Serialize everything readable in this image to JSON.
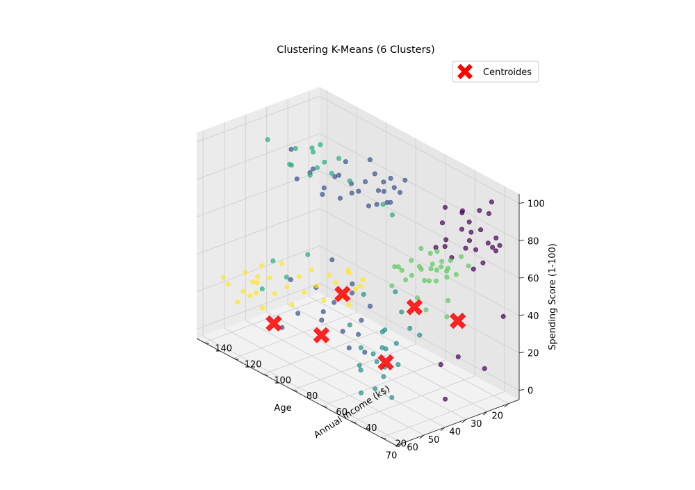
{
  "chart_data": {
    "type": "scatter",
    "projection": "3d",
    "title": "Clustering K-Means (6 Clusters)",
    "xlabel": "Age",
    "ylabel": "Annual Income (k$)",
    "zlabel": "Spending Score (1-100)",
    "xlim": [
      15,
      73
    ],
    "ylim": [
      10,
      145
    ],
    "zlim": [
      -5,
      105
    ],
    "xticks": [
      20,
      30,
      40,
      50,
      60,
      70
    ],
    "yticks": [
      20,
      40,
      60,
      80,
      100,
      120,
      140
    ],
    "zticks": [
      0,
      20,
      40,
      60,
      80,
      100
    ],
    "grid": true,
    "legend_position": "upper-right",
    "colormap": "viridis",
    "centroid_color": "#ff0000",
    "series": [
      {
        "cluster": 0,
        "color": "#440154",
        "points": [
          [
            19,
            15,
            39
          ],
          [
            20,
            16,
            77
          ],
          [
            21,
            17,
            81
          ],
          [
            22,
            18,
            76
          ],
          [
            23,
            19,
            94
          ],
          [
            19,
            20,
            72
          ],
          [
            21,
            20,
            99
          ],
          [
            22,
            21,
            77
          ],
          [
            23,
            23,
            66
          ],
          [
            24,
            24,
            94
          ],
          [
            25,
            25,
            73
          ],
          [
            22,
            26,
            82
          ],
          [
            24,
            28,
            61
          ],
          [
            26,
            28,
            87
          ],
          [
            27,
            29,
            73
          ],
          [
            28,
            30,
            92
          ],
          [
            23,
            31,
            79
          ],
          [
            26,
            33,
            81
          ],
          [
            25,
            34,
            90
          ],
          [
            21,
            35,
            72
          ],
          [
            28,
            37,
            65
          ],
          [
            30,
            38,
            75
          ],
          [
            31,
            39,
            84
          ],
          [
            29,
            40,
            91
          ],
          [
            32,
            42,
            70
          ],
          [
            27,
            43,
            68
          ],
          [
            25,
            19,
            12
          ],
          [
            34,
            24,
            20
          ],
          [
            38,
            30,
            15
          ],
          [
            45,
            17,
            5
          ]
        ]
      },
      {
        "cluster": 1,
        "color": "#3b528b",
        "points": [
          [
            27,
            70,
            92
          ],
          [
            28,
            72,
            85
          ],
          [
            30,
            73,
            88
          ],
          [
            31,
            74,
            93
          ],
          [
            32,
            75,
            80
          ],
          [
            33,
            76,
            91
          ],
          [
            29,
            77,
            78
          ],
          [
            34,
            78,
            86
          ],
          [
            35,
            79,
            95
          ],
          [
            30,
            80,
            83
          ],
          [
            32,
            82,
            76
          ],
          [
            36,
            84,
            89
          ],
          [
            33,
            86,
            74
          ],
          [
            31,
            88,
            97
          ],
          [
            35,
            90,
            81
          ],
          [
            37,
            92,
            85
          ],
          [
            34,
            96,
            77
          ],
          [
            38,
            99,
            87
          ],
          [
            36,
            101,
            73
          ],
          [
            32,
            103,
            90
          ],
          [
            35,
            106,
            82
          ],
          [
            38,
            109,
            76
          ],
          [
            36,
            113,
            70
          ],
          [
            39,
            115,
            84
          ],
          [
            37,
            120,
            79
          ],
          [
            39,
            126,
            74
          ],
          [
            34,
            137,
            83
          ],
          [
            40,
            75,
            28
          ],
          [
            42,
            78,
            20
          ],
          [
            45,
            80,
            35
          ],
          [
            48,
            82,
            15
          ],
          [
            47,
            77,
            42
          ],
          [
            50,
            85,
            30
          ],
          [
            53,
            88,
            25
          ],
          [
            55,
            90,
            38
          ],
          [
            51,
            92,
            18
          ],
          [
            44,
            95,
            46
          ],
          [
            58,
            98,
            22
          ],
          [
            60,
            100,
            40
          ],
          [
            62,
            103,
            14
          ],
          [
            46,
            70,
            8
          ],
          [
            52,
            72,
            12
          ],
          [
            56,
            60,
            26
          ]
        ]
      },
      {
        "cluster": 2,
        "color": "#21918c",
        "points": [
          [
            44,
            48,
            38
          ],
          [
            47,
            46,
            12
          ],
          [
            50,
            50,
            20
          ],
          [
            52,
            40,
            28
          ],
          [
            54,
            45,
            14
          ],
          [
            56,
            42,
            36
          ],
          [
            58,
            47,
            22
          ],
          [
            60,
            38,
            30
          ],
          [
            62,
            40,
            8
          ],
          [
            64,
            36,
            25
          ],
          [
            66,
            44,
            18
          ],
          [
            68,
            41,
            32
          ],
          [
            70,
            38,
            10
          ],
          [
            48,
            30,
            35
          ],
          [
            54,
            28,
            42
          ],
          [
            59,
            33,
            5
          ],
          [
            65,
            30,
            20
          ],
          [
            42,
            55,
            45
          ],
          [
            46,
            58,
            24
          ],
          [
            57,
            55,
            50
          ],
          [
            61,
            52,
            15
          ],
          [
            67,
            50,
            40
          ]
        ]
      },
      {
        "cluster": 3,
        "color": "#5ec962",
        "points": [
          [
            18,
            40,
            55
          ],
          [
            20,
            42,
            60
          ],
          [
            21,
            44,
            50
          ],
          [
            23,
            45,
            58
          ],
          [
            24,
            46,
            49
          ],
          [
            26,
            47,
            55
          ],
          [
            22,
            48,
            52
          ],
          [
            25,
            48,
            57
          ],
          [
            27,
            49,
            47
          ],
          [
            28,
            50,
            56
          ],
          [
            20,
            52,
            48
          ],
          [
            23,
            54,
            59
          ],
          [
            26,
            54,
            51
          ],
          [
            29,
            54,
            46
          ],
          [
            30,
            56,
            53
          ],
          [
            24,
            58,
            42
          ],
          [
            27,
            59,
            49
          ],
          [
            31,
            60,
            55
          ],
          [
            33,
            61,
            45
          ],
          [
            25,
            62,
            58
          ],
          [
            35,
            63,
            52
          ],
          [
            28,
            64,
            44
          ],
          [
            32,
            65,
            48
          ],
          [
            36,
            66,
            41
          ],
          [
            34,
            67,
            50
          ],
          [
            38,
            40,
            40
          ],
          [
            40,
            43,
            46
          ],
          [
            29,
            38,
            42
          ],
          [
            31,
            36,
            35
          ],
          [
            26,
            50,
            52
          ],
          [
            22,
            60,
            55
          ]
        ]
      },
      {
        "cluster": 4,
        "color": "#28ae80",
        "points": [
          [
            35,
            96,
            84
          ],
          [
            38,
            99,
            96
          ],
          [
            40,
            101,
            88
          ],
          [
            42,
            103,
            94
          ],
          [
            44,
            105,
            91
          ],
          [
            46,
            107,
            87
          ],
          [
            43,
            110,
            99
          ],
          [
            37,
            113,
            97
          ],
          [
            39,
            115,
            93
          ],
          [
            48,
            118,
            89
          ],
          [
            45,
            121,
            86
          ],
          [
            41,
            124,
            92
          ],
          [
            50,
            130,
            98
          ],
          [
            33,
            70,
            76
          ],
          [
            36,
            72,
            82
          ],
          [
            55,
            110,
            35
          ],
          [
            60,
            112,
            45
          ],
          [
            52,
            100,
            50
          ],
          [
            63,
            115,
            30
          ]
        ]
      },
      {
        "cluster": 5,
        "color": "#fde725",
        "points": [
          [
            40,
            80,
            40
          ],
          [
            42,
            82,
            35
          ],
          [
            44,
            84,
            45
          ],
          [
            45,
            86,
            30
          ],
          [
            47,
            88,
            38
          ],
          [
            49,
            90,
            42
          ],
          [
            50,
            92,
            28
          ],
          [
            52,
            94,
            36
          ],
          [
            53,
            96,
            44
          ],
          [
            55,
            98,
            32
          ],
          [
            56,
            100,
            40
          ],
          [
            58,
            102,
            25
          ],
          [
            59,
            104,
            34
          ],
          [
            60,
            106,
            46
          ],
          [
            62,
            108,
            30
          ],
          [
            63,
            110,
            38
          ],
          [
            65,
            112,
            22
          ],
          [
            66,
            114,
            35
          ],
          [
            68,
            116,
            28
          ],
          [
            69,
            118,
            40
          ],
          [
            64,
            120,
            32
          ],
          [
            61,
            122,
            24
          ],
          [
            57,
            124,
            36
          ],
          [
            67,
            126,
            20
          ],
          [
            70,
            128,
            30
          ],
          [
            54,
            131,
            26
          ],
          [
            58,
            135,
            18
          ],
          [
            66,
            137,
            28
          ],
          [
            48,
            78,
            48
          ],
          [
            50,
            75,
            33
          ],
          [
            46,
            73,
            42
          ]
        ]
      }
    ],
    "centroids": {
      "name": "Centroides",
      "color": "#ff0000",
      "marker": "X",
      "points": [
        [
          30,
          30,
          35
        ],
        [
          33,
          55,
          33
        ],
        [
          57,
          40,
          20
        ],
        [
          56,
          85,
          15
        ],
        [
          68,
          100,
          20
        ],
        [
          53,
          75,
          40
        ]
      ]
    }
  }
}
